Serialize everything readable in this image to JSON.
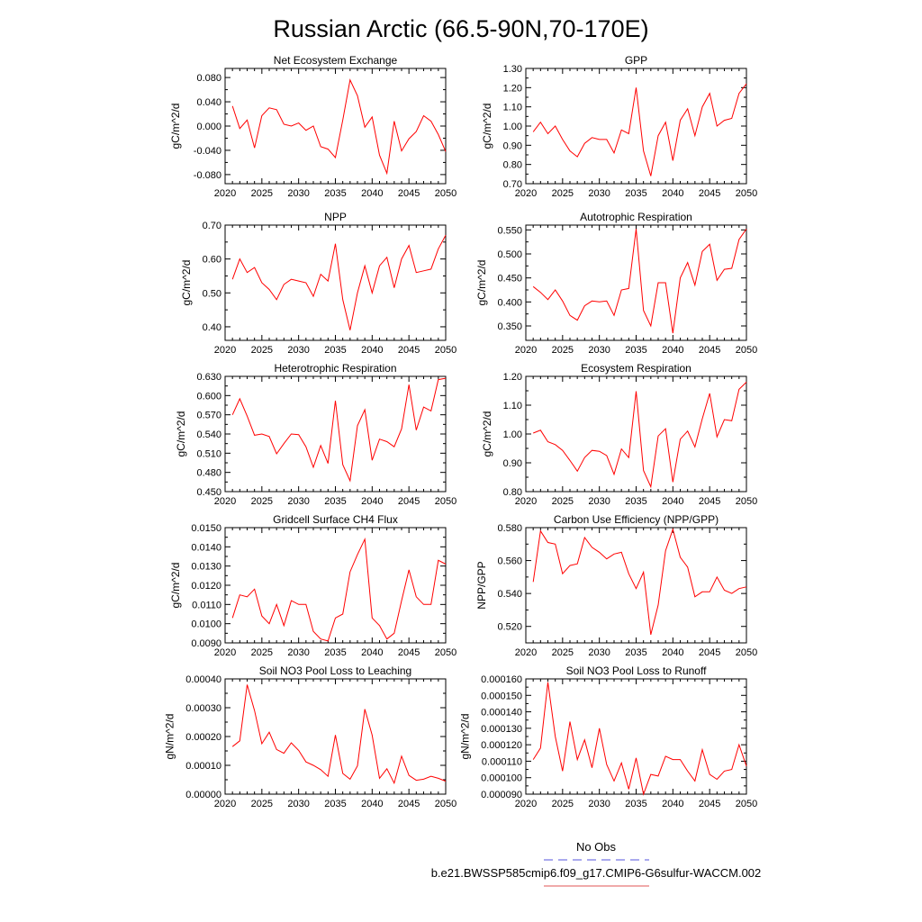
{
  "title": "Russian Arctic (66.5-90N,70-170E)",
  "legend": {
    "position": "bottom-right",
    "entries": [
      {
        "label": "No Obs",
        "color": "#5555dd",
        "dash": "dashed"
      },
      {
        "label": "b.e21.BWSSP585cmip6.f09_g17.CMIP6-G6sulfur-WACCM.002",
        "color": "#e05555",
        "dash": "solid"
      }
    ]
  },
  "chart_data": [
    {
      "type": "line",
      "title": "Net Ecosystem Exchange",
      "ylabel": "gC/m^2/d",
      "xlim": [
        2020,
        2050
      ],
      "ylim": [
        -0.095,
        0.095
      ],
      "xticks": [
        2020,
        2025,
        2030,
        2035,
        2040,
        2045,
        2050
      ],
      "yticks": [
        -0.08,
        -0.04,
        0.0,
        0.04,
        0.08
      ],
      "ytick_labels": [
        "-0.080",
        "-0.040",
        "0.000",
        "0.040",
        "0.080"
      ],
      "x": [
        2021,
        2022,
        2023,
        2024,
        2025,
        2026,
        2027,
        2028,
        2029,
        2030,
        2031,
        2032,
        2033,
        2034,
        2035,
        2036,
        2037,
        2038,
        2039,
        2040,
        2041,
        2042,
        2043,
        2044,
        2045,
        2046,
        2047,
        2048,
        2049,
        2050
      ],
      "series": [
        {
          "color": "#ff0000",
          "values": [
            0.033,
            -0.004,
            0.01,
            -0.036,
            0.017,
            0.03,
            0.027,
            0.003,
            0.0,
            0.005,
            -0.007,
            0.0,
            -0.034,
            -0.038,
            -0.052,
            0.01,
            0.076,
            0.05,
            -0.002,
            0.015,
            -0.048,
            -0.078,
            0.008,
            -0.041,
            -0.021,
            -0.009,
            0.017,
            0.008,
            -0.014,
            -0.042
          ]
        }
      ]
    },
    {
      "type": "line",
      "title": "GPP",
      "ylabel": "gC/m^2/d",
      "xlim": [
        2020,
        2050
      ],
      "ylim": [
        0.7,
        1.3
      ],
      "xticks": [
        2020,
        2025,
        2030,
        2035,
        2040,
        2045,
        2050
      ],
      "yticks": [
        0.7,
        0.8,
        0.9,
        1.0,
        1.1,
        1.2,
        1.3
      ],
      "ytick_labels": [
        "0.70",
        "0.80",
        "0.90",
        "1.00",
        "1.10",
        "1.20",
        "1.30"
      ],
      "x": [
        2021,
        2022,
        2023,
        2024,
        2025,
        2026,
        2027,
        2028,
        2029,
        2030,
        2031,
        2032,
        2033,
        2034,
        2035,
        2036,
        2037,
        2038,
        2039,
        2040,
        2041,
        2042,
        2043,
        2044,
        2045,
        2046,
        2047,
        2048,
        2049,
        2050
      ],
      "series": [
        {
          "color": "#ff0000",
          "values": [
            0.97,
            1.02,
            0.96,
            1.0,
            0.93,
            0.87,
            0.84,
            0.91,
            0.94,
            0.93,
            0.93,
            0.86,
            0.98,
            0.96,
            1.2,
            0.87,
            0.74,
            0.95,
            1.02,
            0.82,
            1.03,
            1.09,
            0.95,
            1.1,
            1.17,
            1.0,
            1.03,
            1.04,
            1.17,
            1.22
          ]
        }
      ]
    },
    {
      "type": "line",
      "title": "NPP",
      "ylabel": "gC/m^2/d",
      "xlim": [
        2020,
        2050
      ],
      "ylim": [
        0.36,
        0.7
      ],
      "xticks": [
        2020,
        2025,
        2030,
        2035,
        2040,
        2045,
        2050
      ],
      "yticks": [
        0.4,
        0.5,
        0.6,
        0.7
      ],
      "ytick_labels": [
        "0.40",
        "0.50",
        "0.60",
        "0.70"
      ],
      "x": [
        2021,
        2022,
        2023,
        2024,
        2025,
        2026,
        2027,
        2028,
        2029,
        2030,
        2031,
        2032,
        2033,
        2034,
        2035,
        2036,
        2037,
        2038,
        2039,
        2040,
        2041,
        2042,
        2043,
        2044,
        2045,
        2046,
        2047,
        2048,
        2049,
        2050
      ],
      "series": [
        {
          "color": "#ff0000",
          "values": [
            0.54,
            0.6,
            0.56,
            0.575,
            0.53,
            0.51,
            0.48,
            0.525,
            0.54,
            0.535,
            0.53,
            0.49,
            0.555,
            0.535,
            0.645,
            0.48,
            0.39,
            0.5,
            0.58,
            0.5,
            0.58,
            0.605,
            0.515,
            0.6,
            0.64,
            0.56,
            0.565,
            0.57,
            0.63,
            0.67
          ]
        }
      ]
    },
    {
      "type": "line",
      "title": "Autotrophic Respiration",
      "ylabel": "gC/m^2/d",
      "xlim": [
        2020,
        2050
      ],
      "ylim": [
        0.32,
        0.56
      ],
      "xticks": [
        2020,
        2025,
        2030,
        2035,
        2040,
        2045,
        2050
      ],
      "yticks": [
        0.35,
        0.4,
        0.45,
        0.5,
        0.55
      ],
      "ytick_labels": [
        "0.350",
        "0.400",
        "0.450",
        "0.500",
        "0.550"
      ],
      "x": [
        2021,
        2022,
        2023,
        2024,
        2025,
        2026,
        2027,
        2028,
        2029,
        2030,
        2031,
        2032,
        2033,
        2034,
        2035,
        2036,
        2037,
        2038,
        2039,
        2040,
        2041,
        2042,
        2043,
        2044,
        2045,
        2046,
        2047,
        2048,
        2049,
        2050
      ],
      "series": [
        {
          "color": "#ff0000",
          "values": [
            0.432,
            0.42,
            0.405,
            0.425,
            0.402,
            0.372,
            0.362,
            0.392,
            0.402,
            0.4,
            0.402,
            0.372,
            0.425,
            0.428,
            0.552,
            0.382,
            0.35,
            0.44,
            0.44,
            0.335,
            0.45,
            0.482,
            0.435,
            0.505,
            0.52,
            0.445,
            0.468,
            0.47,
            0.53,
            0.552
          ]
        }
      ]
    },
    {
      "type": "line",
      "title": "Heterotrophic Respiration",
      "ylabel": "gC/m^2/d",
      "xlim": [
        2020,
        2050
      ],
      "ylim": [
        0.45,
        0.63
      ],
      "xticks": [
        2020,
        2025,
        2030,
        2035,
        2040,
        2045,
        2050
      ],
      "yticks": [
        0.45,
        0.48,
        0.51,
        0.54,
        0.57,
        0.6,
        0.63
      ],
      "ytick_labels": [
        "0.450",
        "0.480",
        "0.510",
        "0.540",
        "0.570",
        "0.600",
        "0.630"
      ],
      "x": [
        2021,
        2022,
        2023,
        2024,
        2025,
        2026,
        2027,
        2028,
        2029,
        2030,
        2031,
        2032,
        2033,
        2034,
        2035,
        2036,
        2037,
        2038,
        2039,
        2040,
        2041,
        2042,
        2043,
        2044,
        2045,
        2046,
        2047,
        2048,
        2049,
        2050
      ],
      "series": [
        {
          "color": "#ff0000",
          "values": [
            0.57,
            0.595,
            0.568,
            0.538,
            0.54,
            0.536,
            0.509,
            0.525,
            0.54,
            0.539,
            0.52,
            0.488,
            0.522,
            0.494,
            0.592,
            0.492,
            0.467,
            0.553,
            0.578,
            0.499,
            0.532,
            0.528,
            0.52,
            0.548,
            0.617,
            0.546,
            0.582,
            0.576,
            0.625,
            0.627
          ]
        }
      ]
    },
    {
      "type": "line",
      "title": "Ecosystem Respiration",
      "ylabel": "gC/m^2/d",
      "xlim": [
        2020,
        2050
      ],
      "ylim": [
        0.8,
        1.2
      ],
      "xticks": [
        2020,
        2025,
        2030,
        2035,
        2040,
        2045,
        2050
      ],
      "yticks": [
        0.8,
        0.9,
        1.0,
        1.1,
        1.2
      ],
      "ytick_labels": [
        "0.80",
        "0.90",
        "1.00",
        "1.10",
        "1.20"
      ],
      "x": [
        2021,
        2022,
        2023,
        2024,
        2025,
        2026,
        2027,
        2028,
        2029,
        2030,
        2031,
        2032,
        2033,
        2034,
        2035,
        2036,
        2037,
        2038,
        2039,
        2040,
        2041,
        2042,
        2043,
        2044,
        2045,
        2046,
        2047,
        2048,
        2049,
        2050
      ],
      "series": [
        {
          "color": "#ff0000",
          "values": [
            1.003,
            1.013,
            0.973,
            0.963,
            0.943,
            0.908,
            0.871,
            0.918,
            0.943,
            0.94,
            0.925,
            0.86,
            0.948,
            0.918,
            1.148,
            0.873,
            0.817,
            0.993,
            1.018,
            0.833,
            0.982,
            1.01,
            0.955,
            1.053,
            1.141,
            0.99,
            1.05,
            1.046,
            1.155,
            1.18
          ]
        }
      ]
    },
    {
      "type": "line",
      "title": "Gridcell Surface CH4 Flux",
      "ylabel": "gC/m^2/d",
      "xlim": [
        2020,
        2050
      ],
      "ylim": [
        0.009,
        0.015
      ],
      "xticks": [
        2020,
        2025,
        2030,
        2035,
        2040,
        2045,
        2050
      ],
      "yticks": [
        0.009,
        0.01,
        0.011,
        0.012,
        0.013,
        0.014,
        0.015
      ],
      "ytick_labels": [
        "0.0090",
        "0.0100",
        "0.0110",
        "0.0120",
        "0.0130",
        "0.0140",
        "0.0150"
      ],
      "x": [
        2021,
        2022,
        2023,
        2024,
        2025,
        2026,
        2027,
        2028,
        2029,
        2030,
        2031,
        2032,
        2033,
        2034,
        2035,
        2036,
        2037,
        2038,
        2039,
        2040,
        2041,
        2042,
        2043,
        2044,
        2045,
        2046,
        2047,
        2048,
        2049,
        2050
      ],
      "series": [
        {
          "color": "#ff0000",
          "values": [
            0.0103,
            0.0115,
            0.0114,
            0.0118,
            0.0104,
            0.01,
            0.011,
            0.0099,
            0.0112,
            0.011,
            0.011,
            0.0096,
            0.0092,
            0.0091,
            0.0103,
            0.0105,
            0.0127,
            0.0136,
            0.0144,
            0.0103,
            0.0099,
            0.0092,
            0.0095,
            0.0112,
            0.0128,
            0.0114,
            0.011,
            0.011,
            0.0133,
            0.0131
          ]
        }
      ]
    },
    {
      "type": "line",
      "title": "Carbon Use Efficiency (NPP/GPP)",
      "ylabel": "NPP/GPP",
      "xlim": [
        2020,
        2050
      ],
      "ylim": [
        0.51,
        0.58
      ],
      "xticks": [
        2020,
        2025,
        2030,
        2035,
        2040,
        2045,
        2050
      ],
      "yticks": [
        0.52,
        0.54,
        0.56,
        0.58
      ],
      "ytick_labels": [
        "0.520",
        "0.540",
        "0.560",
        "0.580"
      ],
      "x": [
        2021,
        2022,
        2023,
        2024,
        2025,
        2026,
        2027,
        2028,
        2029,
        2030,
        2031,
        2032,
        2033,
        2034,
        2035,
        2036,
        2037,
        2038,
        2039,
        2040,
        2041,
        2042,
        2043,
        2044,
        2045,
        2046,
        2047,
        2048,
        2049,
        2050
      ],
      "series": [
        {
          "color": "#ff0000",
          "values": [
            0.547,
            0.578,
            0.571,
            0.57,
            0.552,
            0.557,
            0.558,
            0.574,
            0.568,
            0.565,
            0.561,
            0.564,
            0.565,
            0.552,
            0.543,
            0.553,
            0.515,
            0.533,
            0.566,
            0.579,
            0.562,
            0.556,
            0.538,
            0.541,
            0.541,
            0.55,
            0.542,
            0.54,
            0.543,
            0.544
          ]
        }
      ]
    },
    {
      "type": "line",
      "title": "Soil NO3 Pool Loss to Leaching",
      "ylabel": "gN/m^2/d",
      "xlim": [
        2020,
        2050
      ],
      "ylim": [
        0.0,
        0.0004
      ],
      "xticks": [
        2020,
        2025,
        2030,
        2035,
        2040,
        2045,
        2050
      ],
      "yticks": [
        0.0,
        0.0001,
        0.0002,
        0.0003,
        0.0004
      ],
      "ytick_labels": [
        "0.00000",
        "0.00010",
        "0.00020",
        "0.00030",
        "0.00040"
      ],
      "x": [
        2021,
        2022,
        2023,
        2024,
        2025,
        2026,
        2027,
        2028,
        2029,
        2030,
        2031,
        2032,
        2033,
        2034,
        2035,
        2036,
        2037,
        2038,
        2039,
        2040,
        2041,
        2042,
        2043,
        2044,
        2045,
        2046,
        2047,
        2048,
        2049,
        2050
      ],
      "series": [
        {
          "color": "#ff0000",
          "values": [
            0.000165,
            0.000185,
            0.00038,
            0.00029,
            0.000175,
            0.000215,
            0.000155,
            0.000142,
            0.000178,
            0.000152,
            0.000112,
            0.0001,
            8.5e-05,
            6.2e-05,
            0.000205,
            7.2e-05,
            5.2e-05,
            9.8e-05,
            0.000295,
            0.000205,
            5.5e-05,
            8.8e-05,
            3.8e-05,
            0.000132,
            6.5e-05,
            4.8e-05,
            5.2e-05,
            6.2e-05,
            5.5e-05,
            4.5e-05
          ]
        }
      ]
    },
    {
      "type": "line",
      "title": "Soil NO3 Pool Loss to Runoff",
      "ylabel": "gN/m^2/d",
      "xlim": [
        2020,
        2050
      ],
      "ylim": [
        9e-05,
        0.00016
      ],
      "xticks": [
        2020,
        2025,
        2030,
        2035,
        2040,
        2045,
        2050
      ],
      "yticks": [
        9e-05,
        0.0001,
        0.00011,
        0.00012,
        0.00013,
        0.00014,
        0.00015,
        0.00016
      ],
      "ytick_labels": [
        "0.000090",
        "0.000100",
        "0.000110",
        "0.000120",
        "0.000130",
        "0.000140",
        "0.000150",
        "0.000160"
      ],
      "x": [
        2021,
        2022,
        2023,
        2024,
        2025,
        2026,
        2027,
        2028,
        2029,
        2030,
        2031,
        2032,
        2033,
        2034,
        2035,
        2036,
        2037,
        2038,
        2039,
        2040,
        2041,
        2042,
        2043,
        2044,
        2045,
        2046,
        2047,
        2048,
        2049,
        2050
      ],
      "series": [
        {
          "color": "#ff0000",
          "values": [
            0.000111,
            0.000118,
            0.000158,
            0.000125,
            0.000104,
            0.000134,
            0.000111,
            0.000123,
            0.000106,
            0.00013,
            0.000108,
            9.8e-05,
            0.000109,
            9.3e-05,
            0.000112,
            9e-05,
            0.000102,
            0.000101,
            0.000113,
            0.000111,
            0.000111,
            0.000104,
            9.8e-05,
            0.000117,
            0.000102,
            9.9e-05,
            0.000104,
            0.000105,
            0.00012,
            0.000107
          ]
        }
      ]
    }
  ]
}
